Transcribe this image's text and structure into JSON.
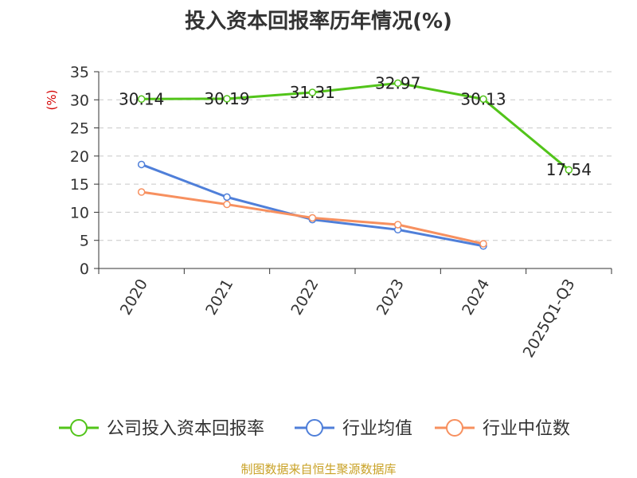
{
  "chart_data": {
    "type": "line",
    "title": "投入资本回报率历年情况(%)",
    "ylabel": "(%)",
    "ylim": [
      0,
      35
    ],
    "yticks": [
      0,
      5,
      10,
      15,
      20,
      25,
      30,
      35
    ],
    "grid": true,
    "legend_position": "bottom",
    "categories": [
      "2020",
      "2021",
      "2022",
      "2023",
      "2024",
      "2025Q1-Q3"
    ],
    "series": [
      {
        "name": "公司投入资本回报率",
        "color": "#52c41a",
        "values": [
          30.14,
          30.19,
          31.31,
          32.97,
          30.13,
          17.54
        ],
        "labels": [
          "30.14",
          "30.19",
          "31.31",
          "32.97",
          "30.13",
          "17.54"
        ]
      },
      {
        "name": "行业均值",
        "color": "#4f7fd9",
        "values": [
          18.5,
          12.7,
          8.7,
          6.9,
          4.0,
          null
        ]
      },
      {
        "name": "行业中位数",
        "color": "#f7905f",
        "values": [
          13.6,
          11.4,
          9.0,
          7.8,
          4.4,
          null
        ]
      }
    ]
  },
  "source": "制图数据来自恒生聚源数据库"
}
